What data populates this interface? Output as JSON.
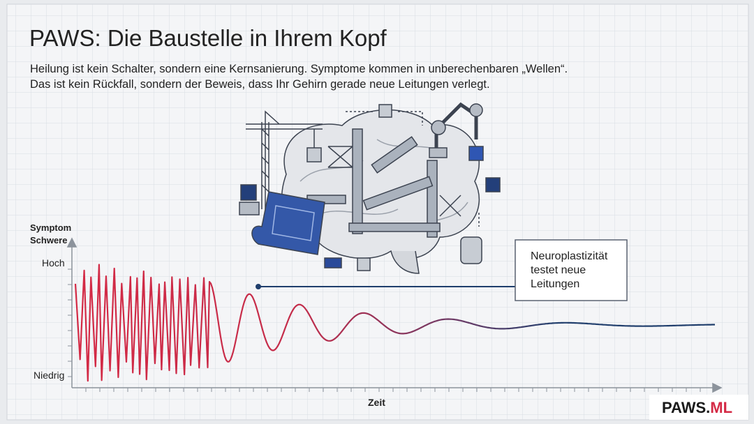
{
  "header": {
    "title": "PAWS: Die Baustelle in Ihrem Kopf",
    "subtitle": [
      "Heilung ist kein Schalter, sondern eine Kernsanierung. Symptome kommen in unberechenbaren „Wellen“.",
      "Das ist kein Rückfall, sondern der Beweis, dass Ihr Gehirn gerade neue Leitungen verlegt."
    ]
  },
  "diagram": {
    "y_axis_label": [
      "Symptom",
      "Schwere"
    ],
    "y_high": "Hoch",
    "y_low": "Niedrig",
    "x_axis_label": "Zeit",
    "callout": [
      "Neuroplastizität",
      "testet neue",
      "Leitungen"
    ]
  },
  "logo": {
    "main": "PAWS.",
    "accent": "ML"
  }
}
